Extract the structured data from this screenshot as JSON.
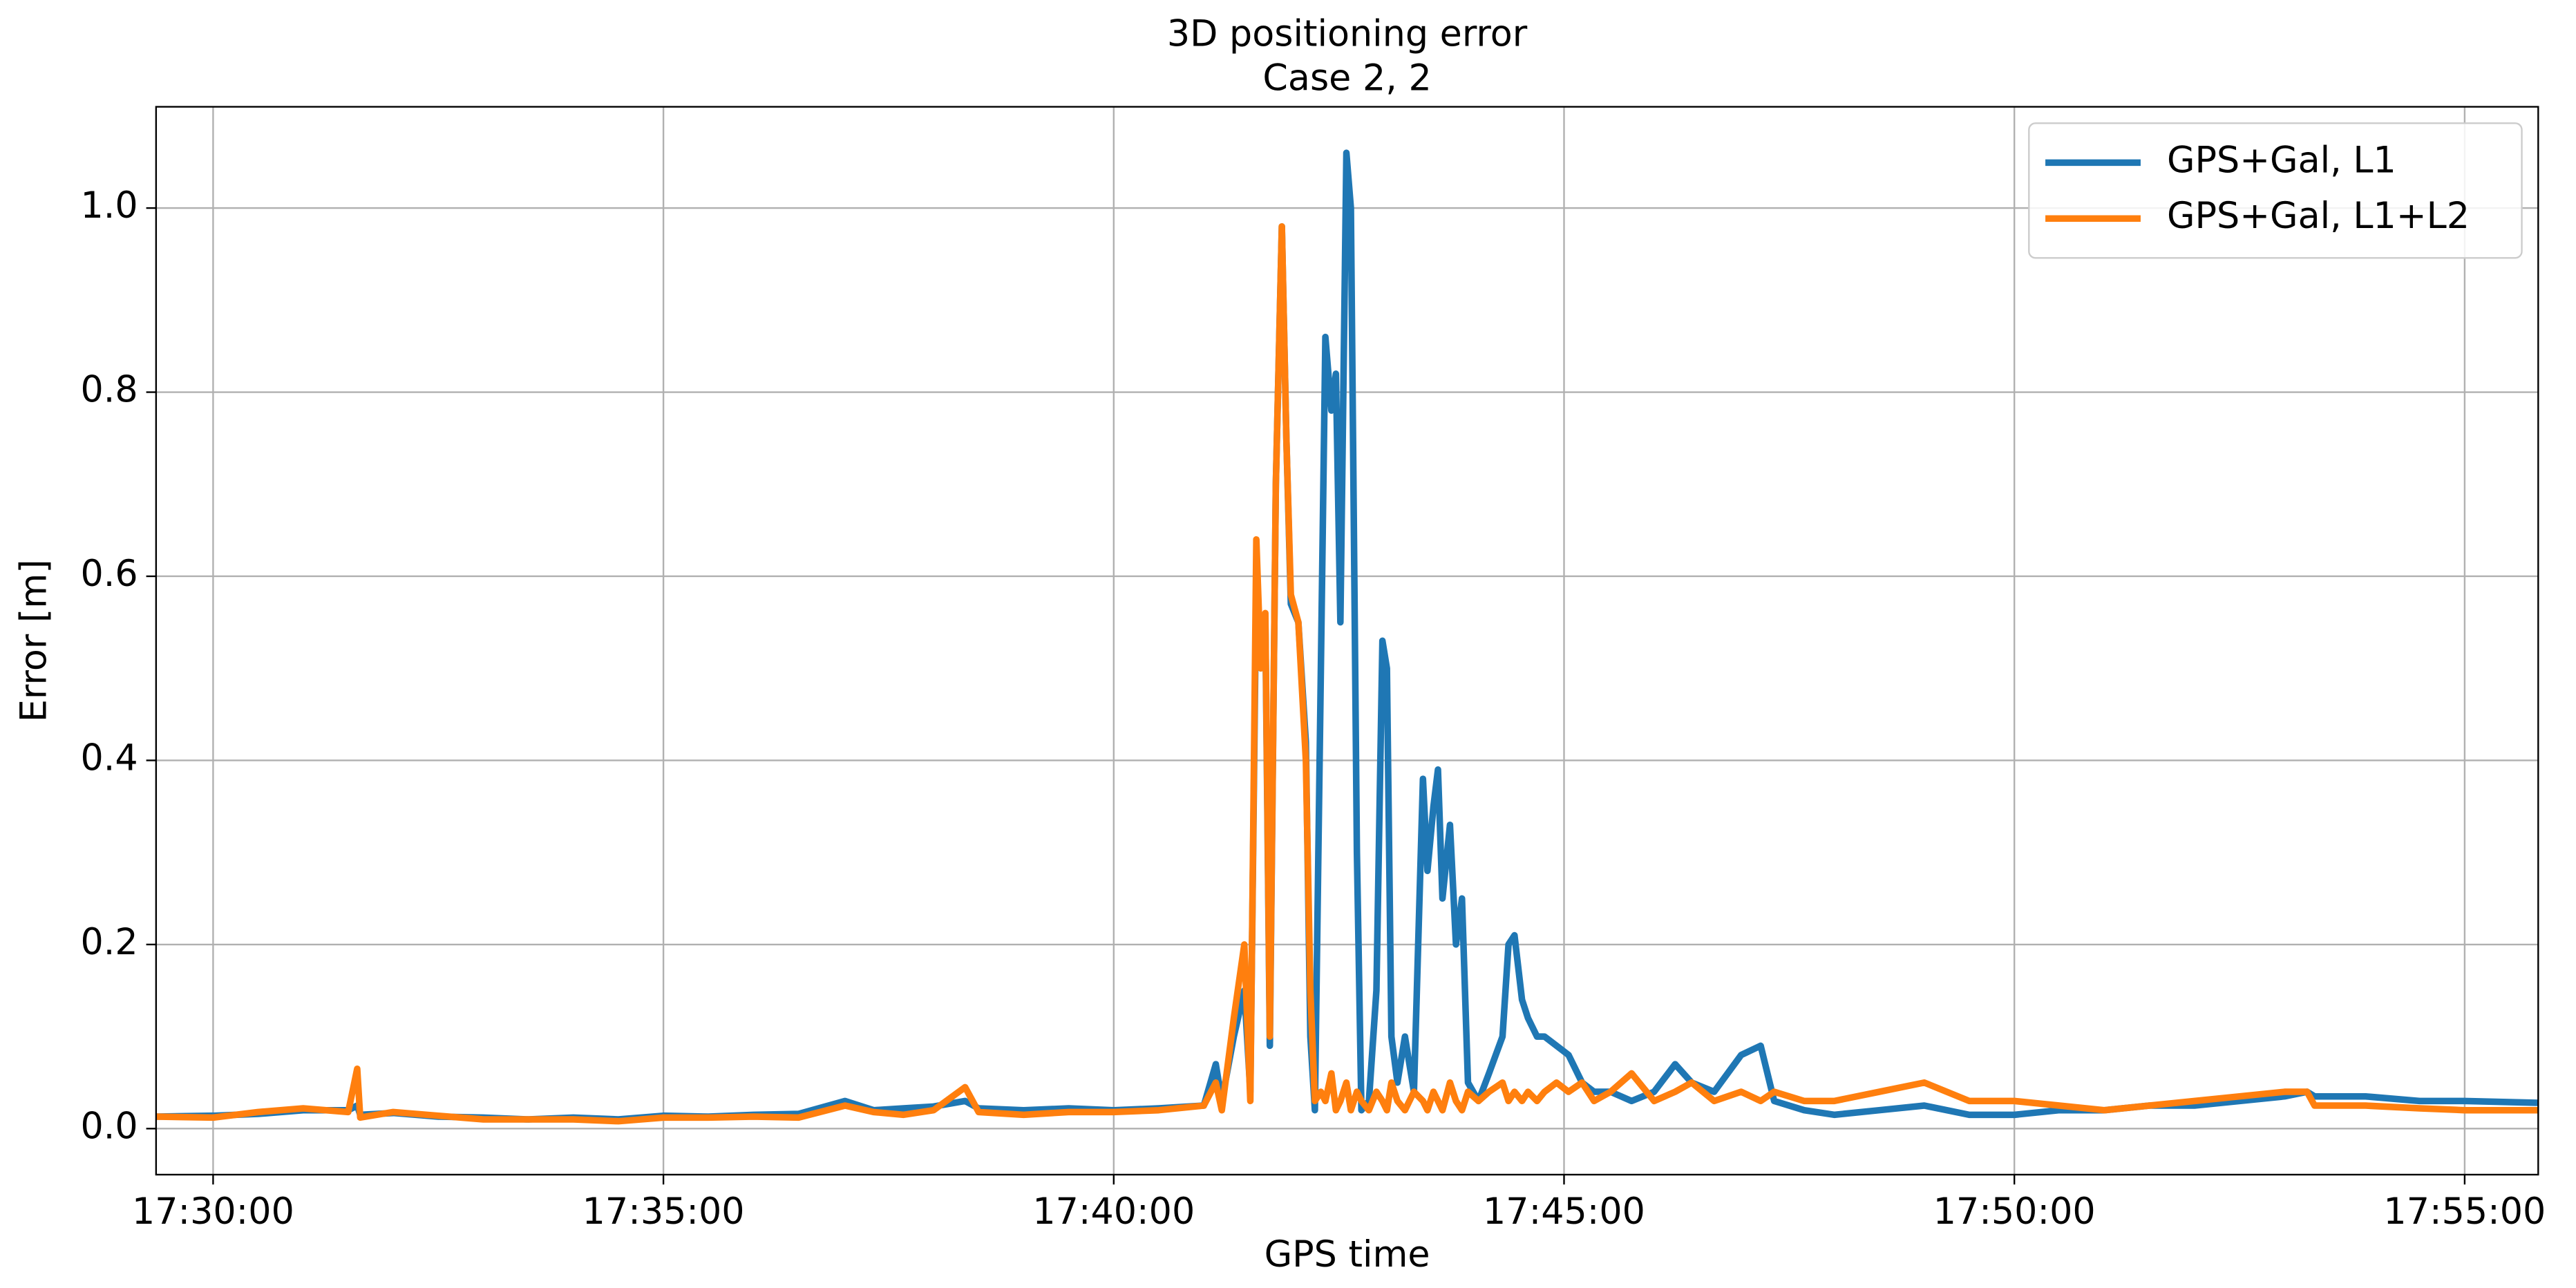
{
  "chart_data": {
    "type": "line",
    "title": "3D positioning error",
    "subtitle": "Case 2, 2",
    "xlabel": "GPS time",
    "ylabel": "Error [m]",
    "x": [
      "17:29:22",
      "17:30:00",
      "17:30:30",
      "17:31:00",
      "17:31:30",
      "17:31:36",
      "17:31:38",
      "17:32:00",
      "17:32:30",
      "17:33:00",
      "17:33:30",
      "17:34:00",
      "17:34:30",
      "17:35:00",
      "17:35:30",
      "17:36:00",
      "17:36:30",
      "17:37:01",
      "17:37:20",
      "17:37:40",
      "17:38:00",
      "17:38:21",
      "17:38:30",
      "17:39:00",
      "17:39:30",
      "17:40:00",
      "17:40:30",
      "17:41:00",
      "17:41:08",
      "17:41:12",
      "17:41:20",
      "17:41:27",
      "17:41:31",
      "17:41:35",
      "17:41:38",
      "17:41:41",
      "17:41:44",
      "17:41:48",
      "17:41:52",
      "17:41:55",
      "17:41:58",
      "17:42:03",
      "17:42:08",
      "17:42:11",
      "17:42:14",
      "17:42:18",
      "17:42:21",
      "17:42:25",
      "17:42:28",
      "17:42:31",
      "17:42:35",
      "17:42:38",
      "17:42:42",
      "17:42:45",
      "17:42:50",
      "17:42:55",
      "17:42:59",
      "17:43:02",
      "17:43:05",
      "17:43:09",
      "17:43:14",
      "17:43:20",
      "17:43:26",
      "17:43:29",
      "17:43:33",
      "17:43:36",
      "17:43:39",
      "17:43:44",
      "17:43:48",
      "17:43:52",
      "17:43:56",
      "17:44:03",
      "17:44:10",
      "17:44:19",
      "17:44:23",
      "17:44:27",
      "17:44:32",
      "17:44:36",
      "17:44:42",
      "17:44:47",
      "17:44:55",
      "17:45:03",
      "17:45:12",
      "17:45:20",
      "17:45:31",
      "17:45:45",
      "17:46:00",
      "17:46:14",
      "17:46:25",
      "17:46:40",
      "17:46:58",
      "17:47:11",
      "17:47:20",
      "17:47:40",
      "17:48:00",
      "17:48:30",
      "17:49:00",
      "17:49:30",
      "17:50:00",
      "17:50:30",
      "17:51:00",
      "17:51:30",
      "17:52:00",
      "17:52:30",
      "17:53:00",
      "17:53:15",
      "17:53:20",
      "17:53:54",
      "17:54:30",
      "17:55:00",
      "17:55:49"
    ],
    "series": [
      {
        "name": "GPS+Gal, L1",
        "color": "#1f77b4",
        "values": [
          0.013,
          0.014,
          0.016,
          0.02,
          0.02,
          0.025,
          0.015,
          0.017,
          0.013,
          0.012,
          0.01,
          0.012,
          0.01,
          0.014,
          0.013,
          0.015,
          0.016,
          0.03,
          0.02,
          0.022,
          0.024,
          0.03,
          0.022,
          0.02,
          0.022,
          0.02,
          0.022,
          0.025,
          0.07,
          0.03,
          0.1,
          0.15,
          0.04,
          0.6,
          0.5,
          0.55,
          0.09,
          0.7,
          0.98,
          0.75,
          0.57,
          0.55,
          0.42,
          0.1,
          0.02,
          0.5,
          0.86,
          0.78,
          0.82,
          0.55,
          1.06,
          1.0,
          0.3,
          0.02,
          0.03,
          0.15,
          0.53,
          0.5,
          0.1,
          0.05,
          0.1,
          0.04,
          0.38,
          0.28,
          0.35,
          0.39,
          0.25,
          0.33,
          0.2,
          0.25,
          0.05,
          0.03,
          0.06,
          0.1,
          0.2,
          0.21,
          0.14,
          0.12,
          0.1,
          0.1,
          0.09,
          0.08,
          0.05,
          0.04,
          0.04,
          0.03,
          0.04,
          0.07,
          0.05,
          0.04,
          0.08,
          0.09,
          0.03,
          0.02,
          0.015,
          0.02,
          0.025,
          0.015,
          0.015,
          0.02,
          0.02,
          0.025,
          0.025,
          0.03,
          0.035,
          0.04,
          0.035,
          0.035,
          0.03,
          0.03,
          0.028
        ]
      },
      {
        "name": "GPS+Gal, L1+L2",
        "color": "#ff7f0e",
        "values": [
          0.013,
          0.012,
          0.018,
          0.022,
          0.018,
          0.065,
          0.012,
          0.018,
          0.014,
          0.01,
          0.01,
          0.01,
          0.008,
          0.012,
          0.012,
          0.013,
          0.012,
          0.025,
          0.018,
          0.015,
          0.02,
          0.045,
          0.018,
          0.015,
          0.018,
          0.018,
          0.02,
          0.025,
          0.05,
          0.02,
          0.12,
          0.2,
          0.03,
          0.64,
          0.5,
          0.56,
          0.1,
          0.7,
          0.98,
          0.75,
          0.58,
          0.55,
          0.4,
          0.15,
          0.03,
          0.04,
          0.03,
          0.06,
          0.02,
          0.03,
          0.05,
          0.02,
          0.04,
          0.03,
          0.02,
          0.04,
          0.03,
          0.02,
          0.05,
          0.03,
          0.02,
          0.04,
          0.03,
          0.02,
          0.04,
          0.03,
          0.02,
          0.05,
          0.03,
          0.02,
          0.04,
          0.03,
          0.04,
          0.05,
          0.03,
          0.04,
          0.03,
          0.04,
          0.03,
          0.04,
          0.05,
          0.04,
          0.05,
          0.03,
          0.04,
          0.06,
          0.03,
          0.04,
          0.05,
          0.03,
          0.04,
          0.03,
          0.04,
          0.03,
          0.03,
          0.04,
          0.05,
          0.03,
          0.03,
          0.025,
          0.02,
          0.025,
          0.03,
          0.035,
          0.04,
          0.04,
          0.025,
          0.025,
          0.022,
          0.02,
          0.02
        ]
      }
    ],
    "xlim": [
      "17:29:22",
      "17:55:49"
    ],
    "xticks": [
      "17:30:00",
      "17:35:00",
      "17:40:00",
      "17:45:00",
      "17:50:00",
      "17:55:00"
    ],
    "ylim": [
      -0.05,
      1.11
    ],
    "yticks": [
      {
        "value": 0,
        "label": "0.0"
      },
      0.2,
      0.4,
      0.6,
      0.8,
      {
        "value": 1,
        "label": "1.0"
      }
    ],
    "grid": true,
    "legend": "upper right"
  }
}
